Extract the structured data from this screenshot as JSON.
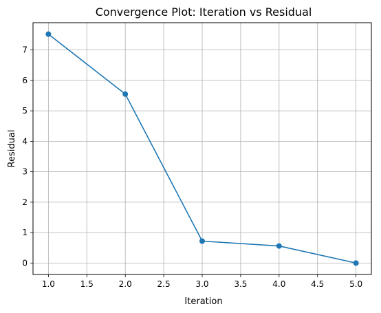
{
  "chart_data": {
    "type": "line",
    "title": "Convergence Plot: Iteration vs Residual",
    "xlabel": "Iteration",
    "ylabel": "Residual",
    "x": [
      1.0,
      2.0,
      3.0,
      4.0,
      5.0
    ],
    "series": [
      {
        "values": [
          7.52,
          5.55,
          0.72,
          0.56,
          0.0
        ]
      }
    ],
    "xlim": [
      0.8,
      5.2
    ],
    "ylim": [
      -0.376,
      7.896
    ],
    "xticks": [
      1.0,
      1.5,
      2.0,
      2.5,
      3.0,
      3.5,
      4.0,
      4.5,
      5.0
    ],
    "xtick_labels": [
      "1.0",
      "1.5",
      "2.0",
      "2.5",
      "3.0",
      "3.5",
      "4.0",
      "4.5",
      "5.0"
    ],
    "yticks": [
      0,
      1,
      2,
      3,
      4,
      5,
      6,
      7
    ],
    "ytick_labels": [
      "0",
      "1",
      "2",
      "3",
      "4",
      "5",
      "6",
      "7"
    ],
    "grid": true,
    "line_color": "#1f77b4",
    "marker": "circle"
  }
}
